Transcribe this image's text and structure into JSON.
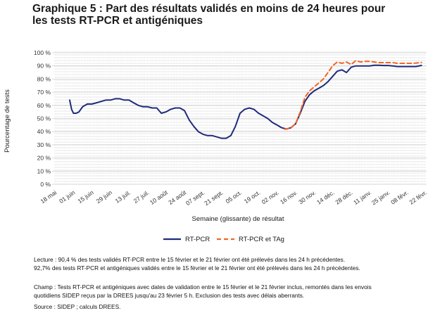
{
  "title_line1": "Graphique 5 : Part des résultats validés en moins de 24 heures pour",
  "title_line2": "les tests RT-PCR et antigéniques",
  "chart_data": {
    "type": "line",
    "ylabel": "Pourcentage de tests",
    "xlabel": "Semaine (glissante) de résultat",
    "y_ticks": [
      "0 %",
      "10 %",
      "20 %",
      "30 %",
      "40 %",
      "50 %",
      "60 %",
      "70 %",
      "80 %",
      "90 %",
      "100 %"
    ],
    "ylim": [
      0,
      100
    ],
    "x_ticks": [
      "18 mai",
      "01 juin",
      "15 juin",
      "29 juin",
      "13 juil.",
      "27 juil.",
      "10 août",
      "24 août",
      "07 sept.",
      "21 sept.",
      "05 oct.",
      "19 oct.",
      "02 nov.",
      "16 nov.",
      "30 nov.",
      "14 déc.",
      "28 déc.",
      "11 janv.",
      "25 janv.",
      "08 févr.",
      "22 févr."
    ],
    "xlim_weeks": [
      0,
      40
    ],
    "grid": true,
    "legend_position": "bottom",
    "colors": {
      "rtpcr": "#1f2a7c",
      "rtpcr_tag": "#f26522",
      "grid": "#d9d9d9"
    },
    "series": [
      {
        "name": "RT-PCR",
        "style": "solid",
        "x": [
          1.6,
          1.8,
          2.0,
          2.3,
          2.6,
          3.0,
          3.5,
          4.0,
          4.5,
          5.0,
          5.5,
          6.0,
          6.5,
          7.0,
          7.5,
          8.0,
          8.5,
          9.0,
          9.5,
          10.0,
          10.5,
          11.0,
          11.5,
          12.0,
          12.5,
          13.0,
          13.5,
          14.0,
          14.5,
          15.0,
          15.5,
          16.0,
          16.5,
          17.0,
          17.5,
          18.0,
          18.5,
          19.0,
          19.5,
          20.0,
          20.5,
          21.0,
          21.5,
          22.0,
          22.5,
          23.0,
          23.5,
          24.0,
          24.5,
          25.0,
          25.5,
          26.0,
          26.5,
          27.0,
          27.5,
          28.0,
          28.5,
          29.0,
          29.5,
          30.0,
          30.5,
          31.0,
          31.5,
          32.0,
          32.5,
          33.0,
          33.5,
          34.0,
          34.5,
          35.0,
          35.5,
          36.0,
          36.5,
          37.0,
          37.5,
          38.0,
          38.5,
          39.0,
          39.6
        ],
        "y": [
          64,
          57,
          54,
          54,
          55,
          59,
          61,
          61,
          62,
          63,
          64,
          64,
          65,
          65,
          64,
          64,
          62,
          60,
          59,
          59,
          58,
          58,
          54,
          55,
          57,
          58,
          58,
          56,
          49,
          44,
          40,
          38,
          37,
          37,
          36,
          35,
          35,
          37,
          44,
          54,
          57,
          58,
          57,
          54,
          52,
          50,
          47,
          45,
          43,
          42,
          43,
          46,
          54,
          63,
          68,
          71,
          73,
          75,
          78,
          82,
          86,
          87,
          85,
          89,
          90,
          90,
          90,
          90,
          90.5,
          90.5,
          90.3,
          90.3,
          90,
          89.5,
          89.5,
          89.5,
          89.5,
          89.5,
          90.4
        ]
      },
      {
        "name": "RT-PCR et TAg",
        "style": "dashed",
        "x": [
          24.8,
          25.0,
          25.5,
          26.0,
          26.5,
          27.0,
          27.5,
          28.0,
          28.5,
          29.0,
          29.5,
          30.0,
          30.5,
          31.0,
          31.5,
          32.0,
          32.5,
          33.0,
          33.5,
          34.0,
          34.5,
          35.0,
          35.5,
          36.0,
          36.5,
          37.0,
          37.5,
          38.0,
          38.5,
          39.0,
          39.6
        ],
        "y": [
          42,
          42,
          43,
          46,
          55,
          66,
          71,
          74,
          77,
          80,
          85,
          90,
          93,
          92,
          93,
          91,
          94,
          93,
          93.5,
          93.5,
          93,
          92.5,
          92.5,
          92.5,
          92.5,
          92,
          92,
          92,
          92,
          92.2,
          92.7
        ]
      }
    ]
  },
  "notes": {
    "lecture_1": "Lecture : 90,4 % des tests validés RT-PCR entre le 15 février et le 21 février ont été prélevés dans les 24 h précédentes.",
    "lecture_2": "92,7% des tests RT-PCR et antigéniques validés entre le 15 février et le 21 février ont été prélevés dans les 24 h précédentes.",
    "champ_1": "Champ : Tests RT-PCR et antigéniques avec dates de validation entre le 15 février et le 21 février inclus, remontés dans les envois",
    "champ_2": "quotidiens SIDEP reçus par la DREES jusqu'au 23 février 5 h. Exclusion des tests avec délais aberrants.",
    "source": "Source : SIDEP ; calculs DREES."
  }
}
